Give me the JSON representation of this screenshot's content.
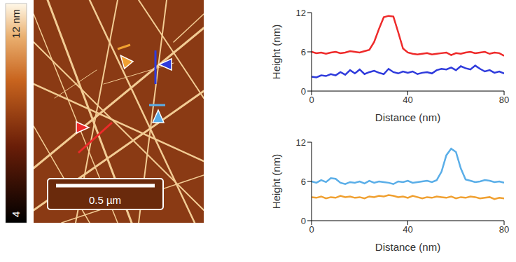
{
  "image": {
    "colorbar": {
      "range": [
        4,
        12
      ],
      "ticks": [
        4,
        {
          "value": 12,
          "label": "12 nm"
        }
      ]
    },
    "scale_bar": "0.5 µm"
  },
  "chart_data": [
    {
      "type": "line",
      "x_label": "Distance (nm)",
      "y_label": "Height (nm)",
      "x": [
        0,
        2,
        4,
        6,
        8,
        10,
        12,
        14,
        16,
        18,
        20,
        22,
        24,
        26,
        28,
        30,
        32,
        34,
        36,
        38,
        40,
        42,
        44,
        46,
        48,
        50,
        52,
        54,
        56,
        58,
        60,
        62,
        64,
        66,
        68,
        70,
        72,
        74,
        76,
        78,
        80
      ],
      "xlim": [
        0,
        80
      ],
      "xticks": [
        0,
        40,
        80
      ],
      "ylim": [
        0,
        12
      ],
      "yticks": [
        0,
        6,
        12
      ],
      "grid": false,
      "series": [
        {
          "color": "#ee2a2a",
          "values": [
            6.0,
            5.8,
            5.9,
            5.7,
            5.9,
            6.0,
            5.8,
            5.9,
            6.1,
            6.0,
            5.9,
            6.1,
            6.3,
            7.5,
            9.5,
            11.3,
            11.5,
            11.4,
            9.0,
            6.5,
            5.9,
            5.7,
            5.6,
            5.7,
            5.8,
            5.6,
            5.7,
            5.8,
            5.9,
            5.5,
            5.8,
            5.7,
            5.9,
            6.0,
            5.8,
            5.9,
            6.0,
            5.7,
            5.9,
            5.8,
            5.4
          ]
        },
        {
          "color": "#2f3bdc",
          "values": [
            2.2,
            2.1,
            2.4,
            2.3,
            2.6,
            2.4,
            2.9,
            2.5,
            3.2,
            2.7,
            3.3,
            2.6,
            2.9,
            3.1,
            2.8,
            2.6,
            3.4,
            2.9,
            2.7,
            3.0,
            2.8,
            3.0,
            2.6,
            2.8,
            2.9,
            2.7,
            3.2,
            3.4,
            3.3,
            3.6,
            3.2,
            3.8,
            3.5,
            3.3,
            3.9,
            3.4,
            3.0,
            3.2,
            2.8,
            3.0,
            2.7
          ]
        }
      ]
    },
    {
      "type": "line",
      "x_label": "Distance (nm)",
      "y_label": "Height (nm)",
      "x": [
        0,
        2,
        4,
        6,
        8,
        10,
        12,
        14,
        16,
        18,
        20,
        22,
        24,
        26,
        28,
        30,
        32,
        34,
        36,
        38,
        40,
        42,
        44,
        46,
        48,
        50,
        52,
        54,
        56,
        58,
        60,
        62,
        64,
        66,
        68,
        70,
        72,
        74,
        76,
        78,
        80
      ],
      "xlim": [
        0,
        80
      ],
      "xticks": [
        0,
        40,
        80
      ],
      "ylim": [
        0,
        12
      ],
      "yticks": [
        0,
        6,
        12
      ],
      "grid": false,
      "series": [
        {
          "color": "#5aaee8",
          "values": [
            6.0,
            5.8,
            6.2,
            5.9,
            6.5,
            6.4,
            5.8,
            5.6,
            5.9,
            5.8,
            6.0,
            5.7,
            6.1,
            5.8,
            6.0,
            5.9,
            5.8,
            5.6,
            6.0,
            5.9,
            6.1,
            5.8,
            5.9,
            6.0,
            6.1,
            5.9,
            6.2,
            7.5,
            10.0,
            11.0,
            10.5,
            8.0,
            6.3,
            6.1,
            5.9,
            6.0,
            6.2,
            6.1,
            5.9,
            6.0,
            5.8
          ]
        },
        {
          "color": "#f0a030",
          "values": [
            3.6,
            3.5,
            3.7,
            3.4,
            3.6,
            3.5,
            3.8,
            3.6,
            3.7,
            3.5,
            3.6,
            3.4,
            3.7,
            3.6,
            3.8,
            3.7,
            3.9,
            3.8,
            3.6,
            3.7,
            3.5,
            3.8,
            3.6,
            3.4,
            3.6,
            3.5,
            3.7,
            3.6,
            3.5,
            3.7,
            3.4,
            3.6,
            3.5,
            3.7,
            3.6,
            3.4,
            3.5,
            3.6,
            3.3,
            3.5,
            3.4
          ]
        }
      ]
    }
  ]
}
